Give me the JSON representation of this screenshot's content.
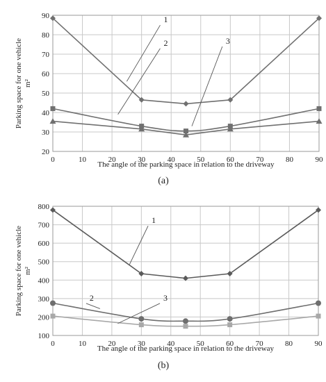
{
  "chart_data": [
    {
      "type": "line",
      "panel_label": "(a)",
      "xlabel": "The angle of the parking space in relation to the driveway",
      "ylabel_line1": "Parking space for one vehicle",
      "ylabel_line2": "m²",
      "xlim": [
        0,
        90
      ],
      "ylim": [
        20,
        90
      ],
      "x_ticks": [
        "0",
        "10",
        "20",
        "30",
        "40",
        "50",
        "60",
        "70",
        "80",
        "90"
      ],
      "y_ticks": [
        "20",
        "30",
        "40",
        "50",
        "60",
        "70",
        "80",
        "90"
      ],
      "grid": true,
      "x": [
        0,
        30,
        45,
        60,
        90
      ],
      "series": [
        {
          "name": "1",
          "color": "#707070",
          "marker": "diamond",
          "curve": "straight",
          "values": [
            88.5,
            46.5,
            44.5,
            46.5,
            88.5
          ]
        },
        {
          "name": "2",
          "color": "#707070",
          "marker": "square",
          "curve": "smooth",
          "values": [
            42,
            33,
            30.5,
            33,
            42
          ]
        },
        {
          "name": "3",
          "color": "#707070",
          "marker": "triangle",
          "curve": "straight",
          "values": [
            35.5,
            31.5,
            28.5,
            31.5,
            35.5
          ]
        }
      ],
      "annotations": [
        {
          "text": "1",
          "label": [
            37,
            86
          ],
          "target": [
            25,
            56
          ]
        },
        {
          "text": "2",
          "label": [
            37,
            74
          ],
          "target": [
            22,
            39
          ]
        },
        {
          "text": "3",
          "label": [
            58,
            75
          ],
          "target": [
            47,
            33
          ]
        }
      ]
    },
    {
      "type": "line",
      "panel_label": "(b)",
      "xlabel": "The angle of the parking space in relation to the driveway",
      "ylabel_line1": "Parking space for one vehicle",
      "ylabel_line2": "m²",
      "xlim": [
        0,
        90
      ],
      "ylim": [
        100,
        800
      ],
      "x_ticks": [
        "0",
        "10",
        "20",
        "30",
        "40",
        "50",
        "60",
        "70",
        "80",
        "90"
      ],
      "y_ticks": [
        "100",
        "200",
        "300",
        "400",
        "500",
        "600",
        "700",
        "800"
      ],
      "grid": true,
      "x": [
        0,
        30,
        45,
        60,
        90
      ],
      "series": [
        {
          "name": "1",
          "color": "#5a5a5a",
          "marker": "diamond",
          "curve": "straight",
          "values": [
            780,
            435,
            410,
            435,
            780
          ]
        },
        {
          "name": "2",
          "color": "#6e6e6e",
          "marker": "circle",
          "curve": "smooth",
          "values": [
            275,
            190,
            178,
            190,
            275
          ]
        },
        {
          "name": "3",
          "color": "#a8a8a8",
          "marker": "square",
          "curve": "smooth",
          "values": [
            205,
            158,
            150,
            158,
            205
          ]
        }
      ],
      "annotations": [
        {
          "text": "1",
          "label": [
            33,
            705
          ],
          "target": [
            26,
            485
          ]
        },
        {
          "text": "2",
          "label": [
            12,
            285
          ],
          "target": [
            16,
            245
          ]
        },
        {
          "text": "3",
          "label": [
            37,
            285
          ],
          "target": [
            22,
            165
          ]
        }
      ]
    }
  ]
}
